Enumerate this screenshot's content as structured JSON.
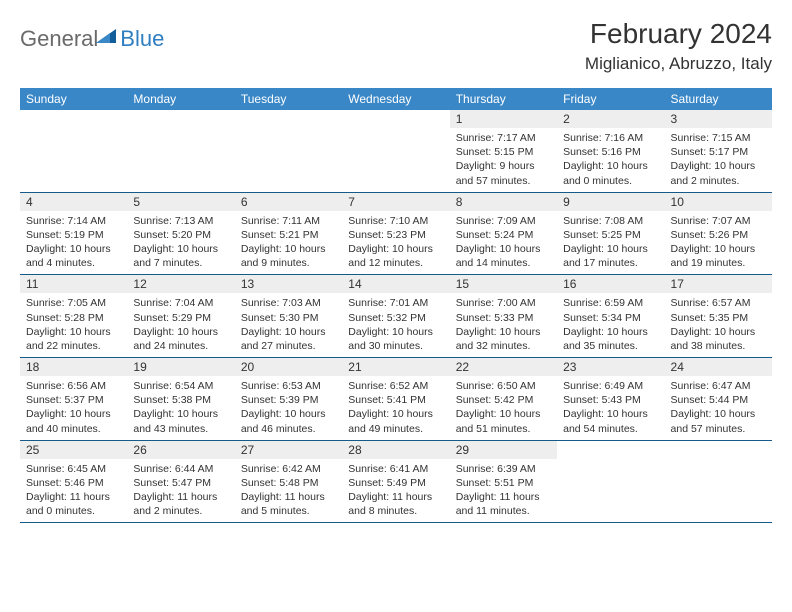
{
  "logo": {
    "part1": "General",
    "part2": "Blue"
  },
  "title": {
    "month": "February 2024",
    "location": "Miglianico, Abruzzo, Italy"
  },
  "colors": {
    "header_bg": "#3a87c7",
    "header_text": "#ffffff",
    "daynum_bg": "#eeeeee",
    "border": "#155a8a",
    "logo_gray": "#6a6a6a",
    "logo_blue": "#2f7ec0",
    "text": "#333333"
  },
  "day_headers": [
    "Sunday",
    "Monday",
    "Tuesday",
    "Wednesday",
    "Thursday",
    "Friday",
    "Saturday"
  ],
  "weeks": [
    [
      null,
      null,
      null,
      null,
      {
        "n": "1",
        "sunrise": "7:17 AM",
        "sunset": "5:15 PM",
        "daylight": "9 hours and 57 minutes."
      },
      {
        "n": "2",
        "sunrise": "7:16 AM",
        "sunset": "5:16 PM",
        "daylight": "10 hours and 0 minutes."
      },
      {
        "n": "3",
        "sunrise": "7:15 AM",
        "sunset": "5:17 PM",
        "daylight": "10 hours and 2 minutes."
      }
    ],
    [
      {
        "n": "4",
        "sunrise": "7:14 AM",
        "sunset": "5:19 PM",
        "daylight": "10 hours and 4 minutes."
      },
      {
        "n": "5",
        "sunrise": "7:13 AM",
        "sunset": "5:20 PM",
        "daylight": "10 hours and 7 minutes."
      },
      {
        "n": "6",
        "sunrise": "7:11 AM",
        "sunset": "5:21 PM",
        "daylight": "10 hours and 9 minutes."
      },
      {
        "n": "7",
        "sunrise": "7:10 AM",
        "sunset": "5:23 PM",
        "daylight": "10 hours and 12 minutes."
      },
      {
        "n": "8",
        "sunrise": "7:09 AM",
        "sunset": "5:24 PM",
        "daylight": "10 hours and 14 minutes."
      },
      {
        "n": "9",
        "sunrise": "7:08 AM",
        "sunset": "5:25 PM",
        "daylight": "10 hours and 17 minutes."
      },
      {
        "n": "10",
        "sunrise": "7:07 AM",
        "sunset": "5:26 PM",
        "daylight": "10 hours and 19 minutes."
      }
    ],
    [
      {
        "n": "11",
        "sunrise": "7:05 AM",
        "sunset": "5:28 PM",
        "daylight": "10 hours and 22 minutes."
      },
      {
        "n": "12",
        "sunrise": "7:04 AM",
        "sunset": "5:29 PM",
        "daylight": "10 hours and 24 minutes."
      },
      {
        "n": "13",
        "sunrise": "7:03 AM",
        "sunset": "5:30 PM",
        "daylight": "10 hours and 27 minutes."
      },
      {
        "n": "14",
        "sunrise": "7:01 AM",
        "sunset": "5:32 PM",
        "daylight": "10 hours and 30 minutes."
      },
      {
        "n": "15",
        "sunrise": "7:00 AM",
        "sunset": "5:33 PM",
        "daylight": "10 hours and 32 minutes."
      },
      {
        "n": "16",
        "sunrise": "6:59 AM",
        "sunset": "5:34 PM",
        "daylight": "10 hours and 35 minutes."
      },
      {
        "n": "17",
        "sunrise": "6:57 AM",
        "sunset": "5:35 PM",
        "daylight": "10 hours and 38 minutes."
      }
    ],
    [
      {
        "n": "18",
        "sunrise": "6:56 AM",
        "sunset": "5:37 PM",
        "daylight": "10 hours and 40 minutes."
      },
      {
        "n": "19",
        "sunrise": "6:54 AM",
        "sunset": "5:38 PM",
        "daylight": "10 hours and 43 minutes."
      },
      {
        "n": "20",
        "sunrise": "6:53 AM",
        "sunset": "5:39 PM",
        "daylight": "10 hours and 46 minutes."
      },
      {
        "n": "21",
        "sunrise": "6:52 AM",
        "sunset": "5:41 PM",
        "daylight": "10 hours and 49 minutes."
      },
      {
        "n": "22",
        "sunrise": "6:50 AM",
        "sunset": "5:42 PM",
        "daylight": "10 hours and 51 minutes."
      },
      {
        "n": "23",
        "sunrise": "6:49 AM",
        "sunset": "5:43 PM",
        "daylight": "10 hours and 54 minutes."
      },
      {
        "n": "24",
        "sunrise": "6:47 AM",
        "sunset": "5:44 PM",
        "daylight": "10 hours and 57 minutes."
      }
    ],
    [
      {
        "n": "25",
        "sunrise": "6:45 AM",
        "sunset": "5:46 PM",
        "daylight": "11 hours and 0 minutes."
      },
      {
        "n": "26",
        "sunrise": "6:44 AM",
        "sunset": "5:47 PM",
        "daylight": "11 hours and 2 minutes."
      },
      {
        "n": "27",
        "sunrise": "6:42 AM",
        "sunset": "5:48 PM",
        "daylight": "11 hours and 5 minutes."
      },
      {
        "n": "28",
        "sunrise": "6:41 AM",
        "sunset": "5:49 PM",
        "daylight": "11 hours and 8 minutes."
      },
      {
        "n": "29",
        "sunrise": "6:39 AM",
        "sunset": "5:51 PM",
        "daylight": "11 hours and 11 minutes."
      },
      null,
      null
    ]
  ],
  "labels": {
    "sunrise": "Sunrise:",
    "sunset": "Sunset:",
    "daylight": "Daylight:"
  }
}
